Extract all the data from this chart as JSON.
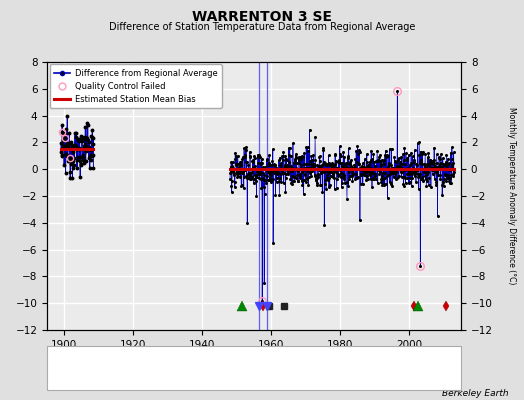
{
  "title": "WARRENTON 3 SE",
  "subtitle": "Difference of Station Temperature Data from Regional Average",
  "ylabel_right": "Monthly Temperature Anomaly Difference (°C)",
  "credit": "Berkeley Earth",
  "xlim": [
    1895,
    2015
  ],
  "ylim_main": [
    -12,
    8
  ],
  "bg_color": "#e0e0e0",
  "plot_bg_color": "#ebebeb",
  "grid_color": "#ffffff",
  "main_line_color": "#0000bb",
  "main_dot_color": "#000000",
  "bias_line_color": "#cc0000",
  "qc_edge_color": "#ff99bb",
  "station_move_color": "#cc0000",
  "record_gap_color": "#008800",
  "tobs_color": "#4444ff",
  "emp_break_color": "#222222",
  "early_t_start": 1899,
  "early_t_end": 1908.5,
  "early_mean": 1.5,
  "early_std": 0.9,
  "main_t_start": 1948,
  "main_t_end": 2013,
  "main_std": 0.75,
  "station_moves": [
    1957.5,
    2001.3,
    2010.5
  ],
  "record_gaps": [
    1951.5,
    2002.5
  ],
  "tobs_changes": [
    1956.5,
    1958.8
  ],
  "emp_breaks": [
    1959.3,
    1963.7
  ],
  "big_spikes": [
    {
      "t": 1957.3,
      "v": -9.8,
      "qc": true
    },
    {
      "t": 1957.9,
      "v": -8.5,
      "qc": false
    },
    {
      "t": 1996.5,
      "v": 5.8,
      "qc": true
    },
    {
      "t": 2003.2,
      "v": -7.2,
      "qc": true
    }
  ],
  "marker_event_y": -10.2,
  "bias_early_y": 1.5,
  "bias_main_y": 0.05
}
